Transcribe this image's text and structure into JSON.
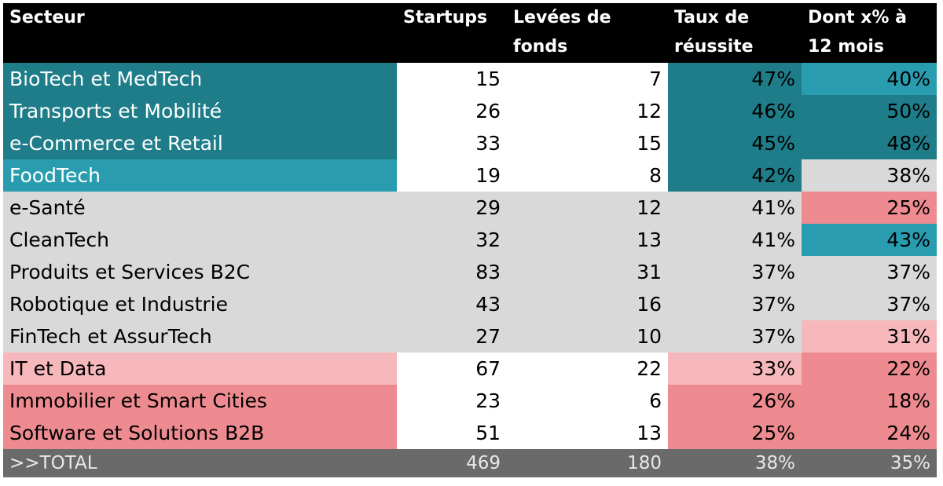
{
  "table": {
    "header": [
      "Secteur",
      "Startups",
      "Levées de fonds",
      "Taux de réussite",
      "Dont x% à 12 mois"
    ],
    "rows": [
      [
        "BioTech et MedTech",
        "15",
        "7",
        "47%",
        "40%"
      ],
      [
        "Transports et Mobilité",
        "26",
        "12",
        "46%",
        "50%"
      ],
      [
        "e-Commerce et Retail",
        "33",
        "15",
        "45%",
        "48%"
      ],
      [
        "FoodTech",
        "19",
        "8",
        "42%",
        "38%"
      ],
      [
        "e-Santé",
        "29",
        "12",
        "41%",
        "25%"
      ],
      [
        "CleanTech",
        "32",
        "13",
        "41%",
        "43%"
      ],
      [
        "Produits et Services B2C",
        "83",
        "31",
        "37%",
        "37%"
      ],
      [
        "Robotique et Industrie",
        "43",
        "16",
        "37%",
        "37%"
      ],
      [
        "FinTech et AssurTech",
        "27",
        "10",
        "37%",
        "31%"
      ],
      [
        "IT et Data",
        "67",
        "22",
        "33%",
        "22%"
      ],
      [
        "Immobilier et Smart Cities",
        "23",
        "6",
        "26%",
        "18%"
      ],
      [
        "Software et Solutions B2B",
        "51",
        "13",
        "25%",
        "24%"
      ]
    ],
    "total": [
      ">>TOTAL",
      "469",
      "180",
      "38%",
      "35%"
    ]
  }
}
